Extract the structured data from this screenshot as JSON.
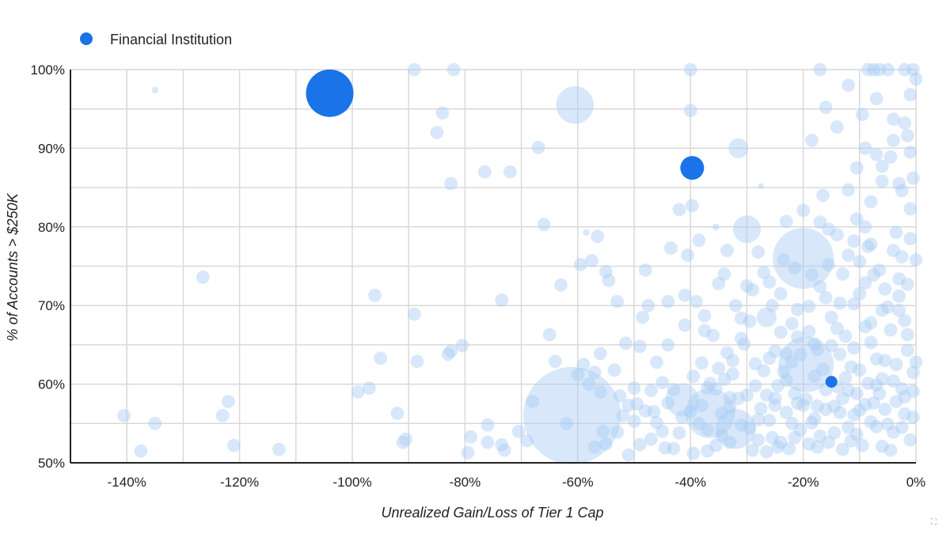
{
  "chart_data": {
    "type": "scatter",
    "subtype": "bubble",
    "xlabel": "Unrealized Gain/Loss of Tier 1 Cap",
    "ylabel": "% of Accounts > $250K",
    "x_ticks": [
      "-140%",
      "-120%",
      "-100%",
      "-80%",
      "-60%",
      "-40%",
      "-20%",
      "0%"
    ],
    "y_ticks": [
      "50%",
      "60%",
      "70%",
      "80%",
      "90%",
      "100%"
    ],
    "xlim": [
      -150,
      0
    ],
    "ylim": [
      50,
      100
    ],
    "grid": true,
    "legend": {
      "position": "top-left",
      "entries": [
        "Financial Institution"
      ]
    },
    "colors": {
      "highlight": "#1a73e8",
      "background": "#a8cdf5",
      "grid": "#d9d9d9",
      "axis": "#222222"
    },
    "highlighted_points": [
      {
        "x": -104,
        "y": 97,
        "size": 4.0
      },
      {
        "x": -39.7,
        "y": 87.5,
        "size": 2.0
      },
      {
        "x": -15,
        "y": 60.3,
        "size": 1.0
      }
    ],
    "background_points": [
      [
        -140.5,
        56,
        1.2
      ],
      [
        -137.5,
        51.5,
        1.2
      ],
      [
        -135,
        55,
        1.2
      ],
      [
        -135,
        97.4,
        0.6
      ],
      [
        -126.5,
        73.6,
        1.2
      ],
      [
        -123,
        56,
        1.2
      ],
      [
        -122,
        57.8,
        1.2
      ],
      [
        -121,
        52.2,
        1.2
      ],
      [
        -113,
        51.7,
        1.2
      ],
      [
        -99,
        59,
        1.2
      ],
      [
        -97,
        59.5,
        1.2
      ],
      [
        -96,
        71.3,
        1.2
      ],
      [
        -95,
        63.3,
        1.2
      ],
      [
        -92,
        56.3,
        1.2
      ],
      [
        -91,
        52.6,
        1.2
      ],
      [
        -90.5,
        53,
        1.2
      ],
      [
        -89,
        68.9,
        1.2
      ],
      [
        -88.5,
        62.9,
        1.2
      ],
      [
        -89,
        100,
        1.2
      ],
      [
        -85,
        92,
        1.2
      ],
      [
        -84,
        94.5,
        1.2
      ],
      [
        -83,
        63.8,
        1.2
      ],
      [
        -82.5,
        64.2,
        1.2
      ],
      [
        -82.5,
        85.5,
        1.2
      ],
      [
        -82,
        100,
        1.2
      ],
      [
        -80.5,
        64.9,
        1.2
      ],
      [
        -79.5,
        51.3,
        1.2
      ],
      [
        -79,
        53.3,
        1.2
      ],
      [
        -76.5,
        87,
        1.2
      ],
      [
        -76,
        54.8,
        1.2
      ],
      [
        -76,
        52.6,
        1.2
      ],
      [
        -73.5,
        70.7,
        1.2
      ],
      [
        -73.5,
        52.3,
        1.2
      ],
      [
        -73,
        51.6,
        1.2
      ],
      [
        -72,
        87,
        1.2
      ],
      [
        -70.5,
        54,
        1.2
      ],
      [
        -69,
        52.8,
        1.2
      ],
      [
        -68,
        57.8,
        1.2
      ],
      [
        -67,
        90.1,
        1.2
      ],
      [
        -66,
        80.3,
        1.2
      ],
      [
        -65,
        66.3,
        1.2
      ],
      [
        -64,
        62.9,
        1.2
      ],
      [
        -63,
        72.6,
        1.2
      ],
      [
        -62,
        55,
        1.2
      ],
      [
        -61,
        56,
        8.8
      ],
      [
        -60.5,
        95.5,
        3.4
      ],
      [
        -60,
        61.2,
        1.2
      ],
      [
        -59.5,
        75.2,
        1.2
      ],
      [
        -59,
        62.5,
        1.2
      ],
      [
        -58.5,
        79.3,
        0.6
      ],
      [
        -58,
        60,
        1.2
      ],
      [
        -57.5,
        75.7,
        1.2
      ],
      [
        -57,
        52,
        1.2
      ],
      [
        -56.5,
        78.8,
        1.2
      ],
      [
        -56,
        63.9,
        1.2
      ],
      [
        -55.5,
        54,
        1.2
      ],
      [
        -55,
        74.3,
        1.2
      ],
      [
        -54.5,
        73.2,
        1.2
      ],
      [
        -53.5,
        61.8,
        1.2
      ],
      [
        -53,
        70.5,
        1.2
      ],
      [
        -52.5,
        58.5,
        1.2
      ],
      [
        -51.5,
        65.2,
        1.2
      ],
      [
        -51,
        51,
        1.2
      ],
      [
        -50,
        55.3,
        1.2
      ],
      [
        -49.5,
        57.5,
        1.2
      ],
      [
        -49,
        64.8,
        1.2
      ],
      [
        -48.5,
        68.5,
        1.2
      ],
      [
        -48,
        74.5,
        1.2
      ],
      [
        -47.5,
        70,
        1.2
      ],
      [
        -47,
        59.2,
        1.2
      ],
      [
        -46.5,
        56.5,
        1.2
      ],
      [
        -46,
        62.8,
        1.2
      ],
      [
        -45,
        54,
        1.2
      ],
      [
        -44,
        70.5,
        1.2
      ],
      [
        -44,
        65,
        1.2
      ],
      [
        -43.5,
        77.3,
        1.2
      ],
      [
        -43,
        51.8,
        1.2
      ],
      [
        -42,
        82.2,
        1.2
      ],
      [
        -41.5,
        58,
        3.0
      ],
      [
        -41,
        71.3,
        1.2
      ],
      [
        -41,
        67.5,
        1.2
      ],
      [
        -40.5,
        76.4,
        1.2
      ],
      [
        -40,
        94.8,
        1.2
      ],
      [
        -40,
        100,
        1.2
      ],
      [
        -39.7,
        82.7,
        1.2
      ],
      [
        -39.5,
        61,
        1.2
      ],
      [
        -39,
        70.5,
        1.2
      ],
      [
        -38.5,
        78.3,
        1.2
      ],
      [
        -38,
        62.7,
        1.2
      ],
      [
        -37.5,
        66.8,
        1.2
      ],
      [
        -37,
        59.5,
        1.2
      ],
      [
        -36.5,
        56.3,
        4.5
      ],
      [
        -35.5,
        80,
        0.6
      ],
      [
        -35,
        72.8,
        1.2
      ],
      [
        -34.5,
        53.5,
        1.2
      ],
      [
        -33.5,
        77,
        1.2
      ],
      [
        -33,
        58.3,
        1.2
      ],
      [
        -32.5,
        63,
        1.2
      ],
      [
        -32,
        54.3,
        3.6
      ],
      [
        -31.5,
        90,
        1.8
      ],
      [
        -31,
        65.8,
        1.2
      ],
      [
        -30,
        79.7,
        2.5
      ],
      [
        -29.5,
        68,
        1.2
      ],
      [
        -29,
        72,
        1.2
      ],
      [
        -28.5,
        59.8,
        1.2
      ],
      [
        -28,
        55.5,
        1.2
      ],
      [
        -27.5,
        85.2,
        0.5
      ],
      [
        -27,
        74.2,
        1.2
      ],
      [
        -26.5,
        68.5,
        1.8
      ],
      [
        -26,
        63.3,
        1.2
      ],
      [
        -25.5,
        70,
        1.2
      ],
      [
        -25,
        57.3,
        1.2
      ],
      [
        -24.5,
        52,
        1.2
      ],
      [
        -23.5,
        75.8,
        1.2
      ],
      [
        -23,
        80.7,
        1.2
      ],
      [
        -22,
        62.8,
        1.2
      ],
      [
        -21.5,
        58.8,
        1.2
      ],
      [
        -21,
        69.5,
        1.2
      ],
      [
        -20.5,
        54.2,
        1.2
      ],
      [
        -20,
        76,
        5.5
      ],
      [
        -19.5,
        62.5,
        5.0
      ],
      [
        -19,
        66.7,
        1.2
      ],
      [
        -18.5,
        91,
        1.2
      ],
      [
        -18,
        55.6,
        1.2
      ],
      [
        -17.5,
        64.4,
        1.2
      ],
      [
        -17,
        72.4,
        1.2
      ],
      [
        -16.5,
        84,
        1.2
      ],
      [
        -16,
        95.2,
        1.2
      ],
      [
        -15.5,
        79.7,
        1.2
      ],
      [
        -15,
        68.5,
        1.2
      ],
      [
        -14.5,
        57.2,
        1.2
      ],
      [
        -14,
        92.7,
        1.2
      ],
      [
        -13.5,
        63.8,
        1.2
      ],
      [
        -13,
        74,
        1.2
      ],
      [
        -12.5,
        60.8,
        1.2
      ],
      [
        -12,
        98,
        1.2
      ],
      [
        -12,
        84.7,
        1.2
      ],
      [
        -11.5,
        52.8,
        1.2
      ],
      [
        -11,
        70.2,
        1.2
      ],
      [
        -10.5,
        81,
        1.2
      ],
      [
        -10,
        61.8,
        1.2
      ],
      [
        -9.5,
        94.3,
        1.2
      ],
      [
        -9,
        90,
        1.2
      ],
      [
        -8.5,
        77.5,
        1.2
      ],
      [
        -8,
        67.8,
        1.2
      ],
      [
        -7.5,
        57.6,
        1.2
      ],
      [
        -7,
        96.3,
        1.2
      ],
      [
        -6.5,
        74.5,
        1.2
      ],
      [
        -6,
        85.8,
        1.2
      ],
      [
        -5.5,
        63,
        1.2
      ],
      [
        -5,
        100,
        1.2
      ],
      [
        -4.5,
        88.9,
        1.2
      ],
      [
        -4,
        53.9,
        1.2
      ],
      [
        -3.5,
        79.3,
        1.2
      ],
      [
        -3,
        71.2,
        1.2
      ],
      [
        -2.5,
        59.4,
        1.2
      ],
      [
        -2,
        93.2,
        1.2
      ],
      [
        -1.5,
        66.3,
        1.2
      ],
      [
        -1,
        82.3,
        1.2
      ],
      [
        -0.5,
        100,
        1.2
      ],
      [
        -0.5,
        55.8,
        1.2
      ],
      [
        0,
        75.8,
        1.2
      ],
      [
        0,
        62.8,
        1.2
      ],
      [
        0,
        98.8,
        1.2
      ],
      [
        -1,
        89.5,
        1.2
      ],
      [
        -2,
        58.4,
        1.2
      ],
      [
        -3,
        69.4,
        1.2
      ],
      [
        -4,
        77,
        1.2
      ],
      [
        -6,
        60.7,
        1.2
      ],
      [
        -7,
        54.6,
        1.2
      ],
      [
        -8,
        65.3,
        1.2
      ],
      [
        -9,
        72.9,
        1.2
      ],
      [
        -10,
        56.7,
        1.2
      ],
      [
        -11,
        64.6,
        1.2
      ],
      [
        -13,
        58.2,
        1.2
      ],
      [
        -14,
        67.1,
        1.2
      ],
      [
        -16,
        59.3,
        1.2
      ],
      [
        -17,
        53.4,
        1.2
      ],
      [
        -18,
        61,
        1.2
      ],
      [
        -22,
        55,
        1.2
      ],
      [
        -23,
        60.5,
        1.2
      ],
      [
        -24,
        66.6,
        1.2
      ],
      [
        -26,
        55.4,
        1.2
      ],
      [
        -27,
        61.7,
        1.2
      ],
      [
        -28,
        52.9,
        1.2
      ],
      [
        -30,
        58.6,
        1.2
      ],
      [
        -31,
        54.8,
        1.2
      ],
      [
        -33,
        52.6,
        1.2
      ],
      [
        -34,
        60.6,
        1.2
      ],
      [
        -37,
        54.2,
        1.2
      ],
      [
        -38,
        57.3,
        1.2
      ],
      [
        -40,
        56.5,
        1.2
      ],
      [
        -42,
        53.8,
        1.2
      ],
      [
        -44,
        57.6,
        1.2
      ],
      [
        -45,
        60.2,
        1.2
      ],
      [
        -47,
        53,
        1.2
      ],
      [
        -48,
        56.6,
        1.2
      ],
      [
        -50,
        59.5,
        1.2
      ],
      [
        -52,
        56,
        1.2
      ],
      [
        -53,
        53.9,
        1.2
      ],
      [
        -55,
        52.4,
        1.2
      ],
      [
        -56,
        59,
        1.2
      ],
      [
        -57,
        61.5,
        1.2
      ],
      [
        -2.5,
        54.5,
        1.2
      ],
      [
        -4.5,
        51.6,
        1.2
      ],
      [
        -5.5,
        56.8,
        1.2
      ],
      [
        -6.5,
        58.8,
        1.2
      ],
      [
        -9.5,
        52.2,
        1.2
      ],
      [
        -10.5,
        58.8,
        1.2
      ],
      [
        -12,
        54.5,
        1.2
      ],
      [
        -13,
        51.7,
        1.2
      ],
      [
        -15.5,
        52.6,
        1.2
      ],
      [
        -17.5,
        57.2,
        1.2
      ],
      [
        -19,
        52.4,
        1.2
      ],
      [
        -21,
        57.6,
        1.2
      ],
      [
        -22.5,
        51.8,
        1.2
      ],
      [
        -24.5,
        59.8,
        1.2
      ],
      [
        -25.5,
        53.2,
        1.2
      ],
      [
        -27.5,
        56.9,
        1.2
      ],
      [
        -29,
        51.6,
        1.2
      ],
      [
        -31.5,
        58.2,
        1.2
      ],
      [
        -32.5,
        61.3,
        1.2
      ],
      [
        -34.5,
        56.3,
        1.2
      ],
      [
        -35.5,
        52.2,
        1.2
      ],
      [
        -36.5,
        60.1,
        1.2
      ],
      [
        -38.5,
        55,
        1.2
      ],
      [
        -39.5,
        51.2,
        1.2
      ],
      [
        -41.5,
        55.8,
        1.2
      ],
      [
        -43,
        59.3,
        1.2
      ],
      [
        -44.5,
        51.9,
        1.2
      ],
      [
        -46,
        55.1,
        1.2
      ],
      [
        -49,
        52.3,
        1.2
      ],
      [
        -51,
        57.3,
        1.2
      ],
      [
        -0.5,
        61.5,
        1.2
      ],
      [
        -1.5,
        64.3,
        1.2
      ],
      [
        -2,
        68.1,
        1.2
      ],
      [
        -3,
        73.4,
        1.2
      ],
      [
        -3.5,
        62.5,
        1.2
      ],
      [
        -5,
        69.8,
        1.2
      ],
      [
        -5.5,
        72.1,
        1.2
      ],
      [
        -7,
        63.2,
        1.2
      ],
      [
        -8.5,
        60.1,
        1.2
      ],
      [
        -9,
        67.3,
        1.2
      ],
      [
        -10,
        71.5,
        1.2
      ],
      [
        -11.5,
        62.2,
        1.2
      ],
      [
        -12.5,
        66.1,
        1.2
      ],
      [
        -14,
        59.7,
        1.2
      ],
      [
        -15,
        64.9,
        1.2
      ],
      [
        -16.5,
        61.9,
        1.2
      ],
      [
        -18,
        65.1,
        1.2
      ],
      [
        -19.5,
        58.1,
        1.2
      ],
      [
        -20.5,
        63.8,
        1.2
      ],
      [
        -22,
        67.7,
        1.2
      ],
      [
        -23.5,
        61.6,
        1.2
      ],
      [
        -25,
        64.2,
        1.2
      ],
      [
        -26.5,
        58.6,
        1.2
      ],
      [
        -28.5,
        62.6,
        1.2
      ],
      [
        -30.5,
        65.1,
        1.2
      ],
      [
        -31,
        68.4,
        1.2
      ],
      [
        -33.5,
        64,
        1.2
      ],
      [
        -35,
        62,
        1.2
      ],
      [
        -36,
        66.2,
        1.2
      ],
      [
        -37.5,
        68.7,
        1.2
      ],
      [
        -0.5,
        86.2,
        1.2
      ],
      [
        -1.5,
        91.6,
        1.2
      ],
      [
        -2.5,
        84.6,
        1.2
      ],
      [
        -4,
        93.7,
        1.2
      ],
      [
        -6,
        87.7,
        1.2
      ],
      [
        -8,
        83.2,
        1.2
      ],
      [
        -9,
        80,
        1.2
      ],
      [
        -10.5,
        87.5,
        1.2
      ],
      [
        -12,
        76.4,
        1.2
      ],
      [
        -14,
        79,
        1.2
      ],
      [
        -15.5,
        75.2,
        1.2
      ],
      [
        -17,
        80.6,
        1.2
      ],
      [
        -20,
        82.1,
        1.2
      ],
      [
        -21.5,
        74.8,
        1.2
      ],
      [
        -24,
        71.5,
        1.2
      ],
      [
        -26,
        73,
        1.2
      ],
      [
        -28,
        76.8,
        1.2
      ],
      [
        -30,
        72.5,
        1.2
      ],
      [
        -32,
        70,
        1.2
      ],
      [
        -34,
        74,
        1.2
      ],
      [
        -7.5,
        100,
        1.2
      ],
      [
        -6.5,
        100,
        1.2
      ],
      [
        -8.5,
        100,
        1.2
      ],
      [
        -2,
        100,
        1.2
      ],
      [
        -17,
        100,
        1.2
      ],
      [
        -1,
        96.8,
        1.2
      ],
      [
        -4,
        91,
        1.2
      ],
      [
        -7,
        89.2,
        1.2
      ],
      [
        -3,
        85.5,
        1.2
      ],
      [
        -1,
        78.5,
        1.2
      ],
      [
        -1.5,
        72.7,
        1.2
      ],
      [
        -2.5,
        76.2,
        1.2
      ],
      [
        -4.5,
        66.9,
        1.2
      ],
      [
        -6,
        69.4,
        1.2
      ],
      [
        -7.5,
        73.9,
        1.2
      ],
      [
        -8,
        77.8,
        1.2
      ],
      [
        -10,
        75.6,
        1.2
      ],
      [
        -11,
        78.2,
        1.2
      ],
      [
        -13.5,
        70.3,
        1.2
      ],
      [
        -16,
        71,
        1.2
      ],
      [
        -18.5,
        73.9,
        1.2
      ],
      [
        -19,
        69.9,
        1.2
      ],
      [
        -21,
        66,
        1.2
      ],
      [
        -23,
        63.9,
        1.2
      ],
      [
        -0.5,
        59.1,
        1.2
      ],
      [
        -1,
        52.9,
        1.2
      ],
      [
        -2,
        56.2,
        1.2
      ],
      [
        -3.5,
        57.8,
        1.2
      ],
      [
        -4,
        60.4,
        1.2
      ],
      [
        -5,
        54.9,
        1.2
      ],
      [
        -6,
        52.1,
        1.2
      ],
      [
        -7,
        59.9,
        1.2
      ],
      [
        -8,
        55.2,
        1.2
      ],
      [
        -9,
        57.4,
        1.2
      ],
      [
        -10.5,
        53.6,
        1.2
      ],
      [
        -11,
        56.1,
        1.2
      ],
      [
        -12,
        59.2,
        1.2
      ],
      [
        -13.5,
        56.4,
        1.2
      ],
      [
        -14.5,
        53.8,
        1.2
      ],
      [
        -16,
        56.8,
        1.2
      ],
      [
        -17.5,
        52,
        1.2
      ],
      [
        -18.5,
        55.1,
        1.2
      ],
      [
        -20,
        57.3,
        1.2
      ],
      [
        -21.5,
        53.2,
        1.2
      ],
      [
        -23,
        56.4,
        1.2
      ],
      [
        -24,
        52.6,
        1.2
      ],
      [
        -25,
        58.2,
        1.2
      ],
      [
        -26.5,
        51.4,
        1.2
      ],
      [
        -29.5,
        54.4,
        1.2
      ],
      [
        -33,
        57.1,
        1.2
      ],
      [
        -35.5,
        59.4,
        1.2
      ],
      [
        -37,
        51.5,
        1.2
      ]
    ]
  }
}
